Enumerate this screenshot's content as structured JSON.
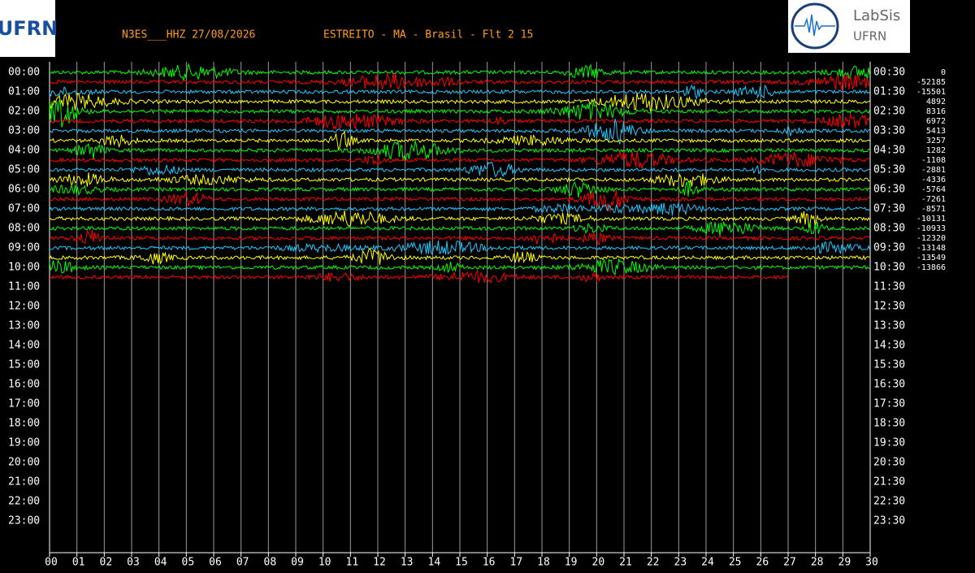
{
  "header": {
    "station": "N3ES___HHZ 27/08/2026",
    "location": "ESTREITO - MA - Brasil - Flt 2 15"
  },
  "logos": {
    "left": "UFRN",
    "right_title": "LabSis",
    "right_sub": "UFRN"
  },
  "left_labels": [
    "00:00",
    "01:00",
    "02:00",
    "03:00",
    "04:00",
    "05:00",
    "06:00",
    "07:00",
    "08:00",
    "09:00",
    "10:00",
    "11:00",
    "12:00",
    "13:00",
    "14:00",
    "15:00",
    "16:00",
    "17:00",
    "18:00",
    "19:00",
    "20:00",
    "21:00",
    "22:00",
    "23:00"
  ],
  "right_labels": [
    "00:30",
    "01:30",
    "02:30",
    "03:30",
    "04:30",
    "05:30",
    "06:30",
    "07:30",
    "08:30",
    "09:30",
    "10:30",
    "11:30",
    "12:30",
    "13:30",
    "14:30",
    "15:30",
    "16:30",
    "17:30",
    "18:30",
    "19:30",
    "20:30",
    "21:30",
    "22:30",
    "23:30"
  ],
  "x_ticks": [
    "00",
    "01",
    "02",
    "03",
    "04",
    "05",
    "06",
    "07",
    "08",
    "09",
    "10",
    "11",
    "12",
    "13",
    "14",
    "15",
    "16",
    "17",
    "18",
    "19",
    "20",
    "21",
    "22",
    "23",
    "24",
    "25",
    "26",
    "27",
    "28",
    "29",
    "30"
  ],
  "trace_offsets": [
    0,
    -52185,
    -15501,
    4892,
    8316,
    6972,
    5413,
    3257,
    1282,
    -1108,
    -2881,
    -4336,
    -5764,
    -7261,
    -8571,
    -10131,
    -10933,
    -12320,
    -13148,
    -13549,
    -13866
  ],
  "trace_colors": [
    "#00ff00",
    "#ff0000",
    "#1ec8ff",
    "#ffff00"
  ]
}
